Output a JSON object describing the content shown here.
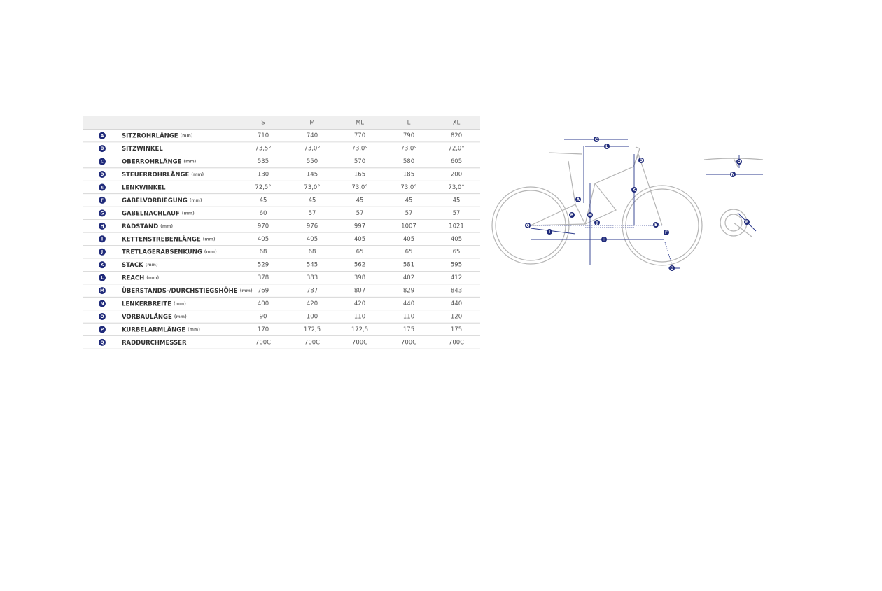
{
  "table": {
    "header": [
      "S",
      "M",
      "ML",
      "L",
      "XL"
    ],
    "rows": [
      {
        "letter": "A",
        "name": "SITZROHRLÄNGE",
        "unit": "(mm)",
        "values": [
          710,
          740,
          770,
          790,
          820
        ]
      },
      {
        "letter": "B",
        "name": "SITZWINKEL",
        "values": [
          "73,5°",
          "73,0°",
          "73,0°",
          "73,0°",
          "72,0°"
        ]
      },
      {
        "letter": "C",
        "name": "OBERROHRLÄNGE",
        "unit": "(mm)",
        "values": [
          535,
          550,
          570,
          580,
          605
        ]
      },
      {
        "letter": "D",
        "name": "STEUERROHRLÄNGE",
        "unit": "(mm)",
        "values": [
          130,
          145,
          165,
          185,
          200
        ]
      },
      {
        "letter": "E",
        "name": "LENKWINKEL",
        "values": [
          "72,5°",
          "73,0°",
          "73,0°",
          "73,0°",
          "73,0°"
        ]
      },
      {
        "letter": "F",
        "name": "GABELVORBIEGUNG",
        "unit": "(mm)",
        "values": [
          45,
          45,
          45,
          45,
          45
        ]
      },
      {
        "letter": "G",
        "name": "GABELNACHLAUF",
        "unit": "(mm)",
        "values": [
          60,
          57,
          57,
          57,
          57
        ]
      },
      {
        "letter": "H",
        "name": "RADSTAND",
        "unit": "(mm)",
        "values": [
          970,
          976,
          997,
          1007,
          1021
        ]
      },
      {
        "letter": "I",
        "name": "KETTENSTREBENLÄNGE",
        "unit": "(mm)",
        "values": [
          405,
          405,
          405,
          405,
          405
        ]
      },
      {
        "letter": "J",
        "name": "TRETLAGERABSENKUNG",
        "unit": "(mm)",
        "values": [
          68,
          68,
          65,
          65,
          65
        ]
      },
      {
        "letter": "K",
        "name": "STACK",
        "unit": "(mm)",
        "values": [
          529,
          545,
          562,
          581,
          595
        ]
      },
      {
        "letter": "L",
        "name": "REACH",
        "unit": "(mm)",
        "values": [
          378,
          383,
          398,
          402,
          412
        ]
      },
      {
        "letter": "M",
        "name": "ÜBERSTANDS-/DURCHSTIEGSHÖHE",
        "unit": "(mm)",
        "values": [
          769,
          787,
          807,
          829,
          843
        ]
      },
      {
        "letter": "N",
        "name": "LENKERBREITE",
        "unit": "(mm)",
        "values": [
          400,
          420,
          420,
          440,
          440
        ]
      },
      {
        "letter": "O",
        "name": "VORBAULÄNGE",
        "unit": "(mm)",
        "values": [
          90,
          100,
          110,
          110,
          120
        ]
      },
      {
        "letter": "P",
        "name": "KURBELARMLÄNGE",
        "unit": "(mm)",
        "values": [
          170,
          "172,5",
          "172,5",
          175,
          175
        ]
      },
      {
        "letter": "Q",
        "name": "RADDURCHMESSER",
        "values": [
          "700C",
          "700C",
          "700C",
          "700C",
          "700C"
        ]
      }
    ]
  },
  "diagram": {
    "labels": [
      "C",
      "L",
      "D",
      "A",
      "K",
      "B",
      "M",
      "J",
      "E",
      "F",
      "I",
      "Q",
      "H",
      "G",
      "O",
      "N",
      "P"
    ]
  }
}
